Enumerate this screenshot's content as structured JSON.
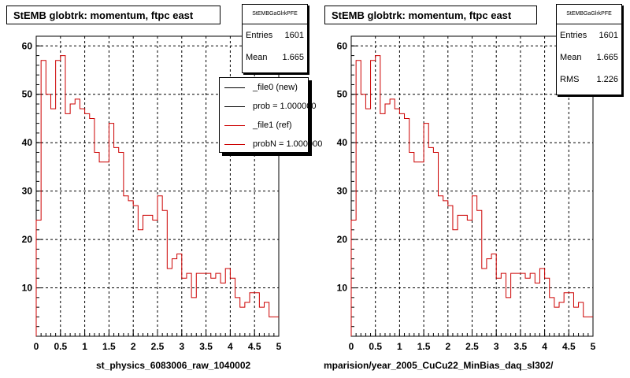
{
  "colors": {
    "hist": "#cc0000",
    "legend_new": "#000000",
    "legend_ref": "#cc0000"
  },
  "chart_data": [
    {
      "type": "histogram",
      "title": "StEMB globtrk: momentum, ftpc east",
      "xlim": [
        0,
        5
      ],
      "ylim": [
        0,
        62
      ],
      "grid": true,
      "xticks": [
        "0",
        "0.5",
        "1",
        "1.5",
        "2",
        "2.5",
        "3",
        "3.5",
        "4",
        "4.5",
        "5"
      ],
      "yticks": [
        "10",
        "20",
        "30",
        "40",
        "50",
        "60"
      ],
      "bin_width": 0.1,
      "values": [
        24,
        57,
        50,
        47,
        57,
        58,
        46,
        48,
        49,
        47,
        46,
        45,
        38,
        36,
        36,
        44,
        39,
        38,
        29,
        28,
        27,
        22,
        25,
        25,
        24,
        29,
        26,
        14,
        16,
        17,
        12,
        13,
        8,
        13,
        13,
        13,
        12,
        13,
        11,
        14,
        12,
        8,
        6,
        7,
        9,
        9,
        6,
        7,
        4,
        4
      ],
      "stats": {
        "name": "StEMBGaGlrkPFE",
        "entries_label": "Entries",
        "entries": "1601",
        "mean_label": "Mean",
        "mean": "1.665"
      },
      "legend": {
        "position": "top-right",
        "entries": [
          "_file0 (new)",
          "prob = 1.000000",
          "_file1 (ref)",
          "probN = 1.000000"
        ]
      },
      "footer": "st_physics_6083006_raw_1040002"
    },
    {
      "type": "histogram",
      "title": "StEMB globtrk: momentum, ftpc east",
      "xlim": [
        0,
        5
      ],
      "ylim": [
        0,
        62
      ],
      "grid": true,
      "xticks": [
        "0",
        "0.5",
        "1",
        "1.5",
        "2",
        "2.5",
        "3",
        "3.5",
        "4",
        "4.5",
        "5"
      ],
      "yticks": [
        "10",
        "20",
        "30",
        "40",
        "50",
        "60"
      ],
      "bin_width": 0.1,
      "values": [
        24,
        57,
        50,
        47,
        57,
        58,
        46,
        48,
        49,
        47,
        46,
        45,
        38,
        36,
        36,
        44,
        39,
        38,
        29,
        28,
        27,
        22,
        25,
        25,
        24,
        29,
        26,
        14,
        16,
        17,
        12,
        13,
        8,
        13,
        13,
        13,
        12,
        13,
        11,
        14,
        12,
        8,
        6,
        7,
        9,
        9,
        6,
        7,
        4,
        4
      ],
      "stats": {
        "name": "StEMBGaGlrkPFE",
        "entries_label": "Entries",
        "entries": "1601",
        "mean_label": "Mean",
        "mean": "1.665",
        "rms_label": "RMS",
        "rms": "1.226"
      },
      "footer": "mparision/year_2005_CuCu22_MinBias_daq_sl302/"
    }
  ]
}
